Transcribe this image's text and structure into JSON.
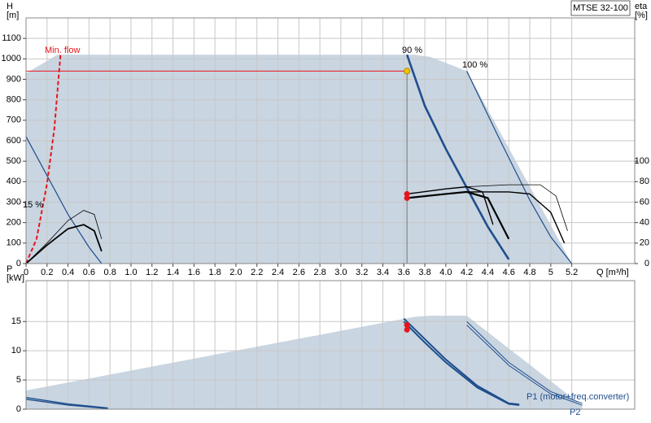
{
  "title": "MTSE 32-100",
  "chart_data": [
    {
      "type": "line",
      "x_label": "Q [m³/h]",
      "y_label": [
        "H",
        "[m]"
      ],
      "y2_label": [
        "eta",
        "[%]"
      ],
      "xlim": [
        0,
        5.8
      ],
      "ylim": [
        0,
        1200
      ],
      "y2lim": [
        0,
        240
      ],
      "xticks": [
        0,
        0.2,
        0.4,
        0.6,
        0.8,
        {
          "value": 1,
          "label": "1.0"
        },
        1.2,
        1.4,
        1.6,
        1.8,
        {
          "value": 2,
          "label": "2.0"
        },
        2.2,
        2.4,
        2.6,
        2.8,
        {
          "value": 3,
          "label": "3.0"
        },
        3.2,
        3.4,
        3.6,
        3.8,
        {
          "value": 4,
          "label": "4.0"
        },
        4.2,
        4.4,
        4.6,
        4.8,
        5,
        5.2
      ],
      "yticks": [
        0,
        100,
        200,
        300,
        400,
        500,
        600,
        700,
        800,
        900,
        1000,
        1100
      ],
      "y2ticks": [
        0,
        20,
        40,
        60,
        80,
        100
      ],
      "grid": true,
      "annotations": [
        "Min. flow",
        "90 %",
        "100 %",
        "15 %"
      ],
      "duty_point": {
        "x": 3.63,
        "y": 940
      },
      "series": [
        {
          "kind": "area",
          "color": "#c9d5e1",
          "x": [
            0,
            0,
            0.3,
            3.7,
            3.85,
            4.2,
            5.2
          ],
          "values": [
            0,
            930,
            1020,
            1020,
            1010,
            940,
            0
          ]
        },
        {
          "kind": "line",
          "color": "#1f4e8c",
          "width": 1.2,
          "x": [
            4.2,
            4.5,
            4.8,
            5.0,
            5.2
          ],
          "values": [
            940,
            620,
            310,
            130,
            0
          ]
        },
        {
          "kind": "line",
          "color": "#1f4e8c",
          "width": 2.6,
          "x": [
            3.63,
            3.8,
            4.0,
            4.2,
            4.4,
            4.6
          ],
          "values": [
            1020,
            770,
            560,
            370,
            180,
            20
          ]
        },
        {
          "kind": "line",
          "color": "#1f4e8c",
          "width": 1.2,
          "x": [
            0,
            0.2,
            0.4,
            0.6,
            0.72
          ],
          "values": [
            620,
            430,
            240,
            80,
            0
          ]
        },
        {
          "kind": "line",
          "color": "#e8141c",
          "width": 2,
          "dash": true,
          "x": [
            0,
            0.1,
            0.2,
            0.27,
            0.33
          ],
          "values": [
            0,
            120,
            390,
            660,
            1030
          ]
        },
        {
          "kind": "line",
          "color": "#000000",
          "width": 0.8,
          "axis": "y2",
          "x": [
            0,
            0.2,
            0.4,
            0.55,
            0.65,
            0.72
          ],
          "values": [
            0,
            20,
            42,
            52,
            48,
            24
          ]
        },
        {
          "kind": "line",
          "color": "#000000",
          "width": 1.8,
          "axis": "y2",
          "x": [
            0,
            0.2,
            0.4,
            0.55,
            0.65,
            0.72
          ],
          "values": [
            0,
            18,
            34,
            38,
            32,
            12
          ]
        },
        {
          "kind": "line",
          "color": "#000000",
          "width": 1.4,
          "axis": "y2",
          "x": [
            3.63,
            4.0,
            4.2,
            4.35,
            4.45
          ],
          "values": [
            68,
            73,
            75,
            70,
            38
          ]
        },
        {
          "kind": "line",
          "color": "#000000",
          "width": 2.2,
          "axis": "y2",
          "x": [
            3.63,
            4.0,
            4.2,
            4.4,
            4.6
          ],
          "values": [
            64,
            68,
            70,
            64,
            24
          ]
        },
        {
          "kind": "line",
          "color": "#000000",
          "width": 0.8,
          "axis": "y2",
          "x": [
            4.2,
            4.6,
            4.9,
            5.05,
            5.16
          ],
          "values": [
            75,
            77,
            77,
            66,
            32
          ]
        },
        {
          "kind": "line",
          "color": "#000000",
          "width": 1.4,
          "axis": "y2",
          "x": [
            4.2,
            4.6,
            4.8,
            5.0,
            5.13
          ],
          "values": [
            70,
            70,
            68,
            50,
            20
          ]
        },
        {
          "kind": "points",
          "color": "#e8141c",
          "axis": "y2",
          "x": [
            3.63,
            3.63
          ],
          "values": [
            68,
            64
          ]
        }
      ]
    },
    {
      "type": "line",
      "y_label": [
        "P",
        "[kW]"
      ],
      "xlim": [
        0,
        5.8
      ],
      "ylim": [
        0,
        22
      ],
      "xgrid": [
        0.2,
        0.4,
        0.6,
        0.8,
        1,
        1.2,
        1.4,
        1.6,
        1.8,
        2,
        2.2,
        2.4,
        2.6,
        2.8,
        3,
        3.2,
        3.4,
        3.6,
        3.8,
        4,
        4.2,
        4.4,
        4.6,
        4.8,
        5,
        5.2
      ],
      "yticks": [
        0,
        5,
        10,
        15
      ],
      "grid": true,
      "annotations": [
        "P1 (motor+freq.converter)",
        "P2"
      ],
      "series": [
        {
          "kind": "area",
          "color": "#c9d5e1",
          "x": [
            0,
            0,
            3.7,
            3.85,
            4.2,
            5.3,
            5.3
          ],
          "values": [
            0,
            3.2,
            15.8,
            16,
            16,
            0.6,
            0
          ]
        },
        {
          "kind": "line",
          "color": "#1f4e8c",
          "width": 2,
          "x": [
            3.6,
            3.8,
            4.0,
            4.3,
            4.6,
            4.7
          ],
          "values": [
            15.5,
            12,
            8.5,
            4,
            1,
            0.8
          ]
        },
        {
          "kind": "line",
          "color": "#1f4e8c",
          "width": 2,
          "x": [
            3.6,
            3.8,
            4.0,
            4.3,
            4.6,
            4.7
          ],
          "values": [
            15,
            11.4,
            8,
            3.7,
            0.9,
            0.7
          ]
        },
        {
          "kind": "line",
          "color": "#1f4e8c",
          "width": 1,
          "x": [
            4.2,
            4.6,
            5.0,
            5.3
          ],
          "values": [
            15,
            8,
            3,
            1
          ]
        },
        {
          "kind": "line",
          "color": "#1f4e8c",
          "width": 1,
          "x": [
            4.2,
            4.6,
            5.0,
            5.3
          ],
          "values": [
            14.4,
            7.5,
            2.6,
            0.7
          ]
        },
        {
          "kind": "line",
          "color": "#1f4e8c",
          "width": 1.4,
          "x": [
            0,
            0.4,
            0.78
          ],
          "values": [
            2,
            0.9,
            0.2
          ]
        },
        {
          "kind": "line",
          "color": "#1f4e8c",
          "width": 1.4,
          "x": [
            0,
            0.4,
            0.78
          ],
          "values": [
            1.7,
            0.7,
            0.1
          ]
        },
        {
          "kind": "points",
          "color": "#e8141c",
          "x": [
            3.63,
            3.63
          ],
          "values": [
            14.4,
            13.6
          ]
        }
      ]
    }
  ]
}
